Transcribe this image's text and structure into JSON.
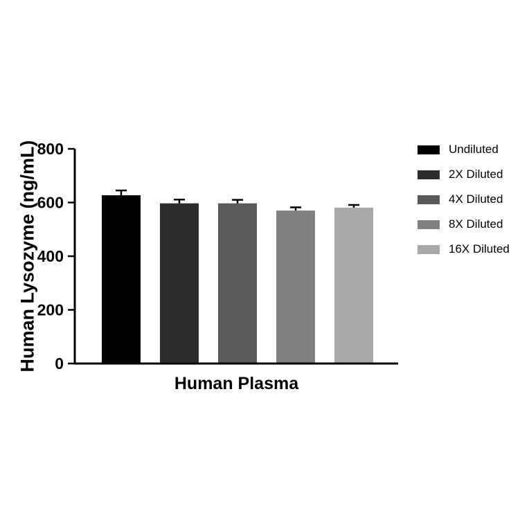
{
  "chart_data": {
    "type": "bar",
    "title": "",
    "xlabel": "Human Plasma",
    "ylabel": "Human Lysozyme (ng/mL)",
    "ylim": [
      0,
      800
    ],
    "yticks": [
      0,
      200,
      400,
      600,
      800
    ],
    "categories": [
      "Undiluted",
      "2X Diluted",
      "4X Diluted",
      "8X Diluted",
      "16X Diluted"
    ],
    "values": [
      627,
      597,
      597,
      570,
      581
    ],
    "errors": [
      18,
      14,
      13,
      12,
      10
    ],
    "colors": [
      "#000000",
      "#2d2d2d",
      "#5a5a5a",
      "#808080",
      "#a9a9a9"
    ],
    "axis_color": "#000000",
    "grid": false,
    "legend_position": "right",
    "legend": [
      {
        "label": "Undiluted",
        "color": "#000000"
      },
      {
        "label": "2X Diluted",
        "color": "#2d2d2d"
      },
      {
        "label": "4X Diluted",
        "color": "#5a5a5a"
      },
      {
        "label": "8X Diluted",
        "color": "#808080"
      },
      {
        "label": "16X Diluted",
        "color": "#a9a9a9"
      }
    ]
  }
}
